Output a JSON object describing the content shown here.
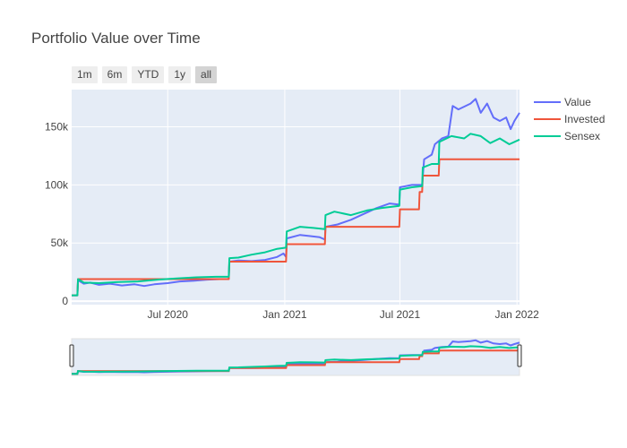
{
  "chart_data": {
    "type": "line",
    "title": "Portfolio Value over Time",
    "range_buttons": [
      {
        "label": "1m",
        "active": false
      },
      {
        "label": "6m",
        "active": false
      },
      {
        "label": "YTD",
        "active": false
      },
      {
        "label": "1y",
        "active": false
      },
      {
        "label": "all",
        "active": true
      }
    ],
    "x_range": [
      "2020-02-01",
      "2022-01-05"
    ],
    "y_range": [
      -3000,
      182000
    ],
    "x_ticks": [
      {
        "date": "2020-07-01",
        "label": "Jul 2020"
      },
      {
        "date": "2021-01-01",
        "label": "Jan 2021"
      },
      {
        "date": "2021-07-01",
        "label": "Jul 2021"
      },
      {
        "date": "2022-01-01",
        "label": "Jan 2022"
      }
    ],
    "y_ticks": [
      {
        "value": 0,
        "label": "0"
      },
      {
        "value": 50000,
        "label": "50k"
      },
      {
        "value": 100000,
        "label": "100k"
      },
      {
        "value": 150000,
        "label": "150k"
      }
    ],
    "legend_position": "top-right",
    "rangeslider": true,
    "colors": {
      "plot_bg": "#e5ecf6",
      "grid": "#ffffff"
    },
    "series": [
      {
        "name": "Value",
        "color": "#636efa",
        "points": [
          [
            "2020-02-01",
            5000
          ],
          [
            "2020-02-10",
            5000
          ],
          [
            "2020-02-11",
            18000
          ],
          [
            "2020-02-20",
            15000
          ],
          [
            "2020-03-01",
            16000
          ],
          [
            "2020-03-15",
            14000
          ],
          [
            "2020-04-01",
            15000
          ],
          [
            "2020-04-20",
            13500
          ],
          [
            "2020-05-10",
            14500
          ],
          [
            "2020-05-25",
            13000
          ],
          [
            "2020-06-10",
            14500
          ],
          [
            "2020-07-01",
            15500
          ],
          [
            "2020-07-20",
            17000
          ],
          [
            "2020-08-10",
            17500
          ],
          [
            "2020-09-01",
            18500
          ],
          [
            "2020-09-20",
            19000
          ],
          [
            "2020-10-05",
            19000
          ],
          [
            "2020-10-06",
            34000
          ],
          [
            "2020-10-20",
            35000
          ],
          [
            "2020-11-10",
            34500
          ],
          [
            "2020-12-01",
            35500
          ],
          [
            "2020-12-20",
            38000
          ],
          [
            "2020-12-30",
            41000
          ],
          [
            "2021-01-03",
            38000
          ],
          [
            "2021-01-04",
            54000
          ],
          [
            "2021-01-25",
            57000
          ],
          [
            "2021-02-10",
            56000
          ],
          [
            "2021-02-25",
            55000
          ],
          [
            "2021-03-05",
            53000
          ],
          [
            "2021-03-06",
            64000
          ],
          [
            "2021-03-25",
            66000
          ],
          [
            "2021-04-15",
            70000
          ],
          [
            "2021-05-05",
            75000
          ],
          [
            "2021-05-25",
            80000
          ],
          [
            "2021-06-15",
            84000
          ],
          [
            "2021-06-30",
            83000
          ],
          [
            "2021-07-01",
            98000
          ],
          [
            "2021-07-20",
            100000
          ],
          [
            "2021-08-05",
            100000
          ],
          [
            "2021-08-08",
            122000
          ],
          [
            "2021-08-20",
            126000
          ],
          [
            "2021-08-25",
            135000
          ],
          [
            "2021-09-05",
            140000
          ],
          [
            "2021-09-15",
            142000
          ],
          [
            "2021-09-22",
            168000
          ],
          [
            "2021-10-01",
            165000
          ],
          [
            "2021-10-20",
            170000
          ],
          [
            "2021-10-28",
            174000
          ],
          [
            "2021-11-05",
            162000
          ],
          [
            "2021-11-15",
            170000
          ],
          [
            "2021-11-25",
            158000
          ],
          [
            "2021-12-05",
            155000
          ],
          [
            "2021-12-15",
            158000
          ],
          [
            "2021-12-22",
            148000
          ],
          [
            "2021-12-28",
            155000
          ],
          [
            "2022-01-05",
            162000
          ]
        ]
      },
      {
        "name": "Invested",
        "color": "#ef553b",
        "points": [
          [
            "2020-02-01",
            5000
          ],
          [
            "2020-02-10",
            5000
          ],
          [
            "2020-02-11",
            19000
          ],
          [
            "2020-10-05",
            19000
          ],
          [
            "2020-10-06",
            34000
          ],
          [
            "2021-01-03",
            34000
          ],
          [
            "2021-01-04",
            49000
          ],
          [
            "2021-03-05",
            49000
          ],
          [
            "2021-03-06",
            64000
          ],
          [
            "2021-06-30",
            64000
          ],
          [
            "2021-07-01",
            79000
          ],
          [
            "2021-07-31",
            79000
          ],
          [
            "2021-08-01",
            94000
          ],
          [
            "2021-08-05",
            94000
          ],
          [
            "2021-08-06",
            108000
          ],
          [
            "2021-08-31",
            108000
          ],
          [
            "2021-09-01",
            122000
          ],
          [
            "2022-01-05",
            122000
          ]
        ]
      },
      {
        "name": "Sensex",
        "color": "#00cc96",
        "points": [
          [
            "2020-02-01",
            5000
          ],
          [
            "2020-02-10",
            5000
          ],
          [
            "2020-02-11",
            19000
          ],
          [
            "2020-02-20",
            16000
          ],
          [
            "2020-03-15",
            15500
          ],
          [
            "2020-04-15",
            16500
          ],
          [
            "2020-05-15",
            17000
          ],
          [
            "2020-06-15",
            18500
          ],
          [
            "2020-07-15",
            19500
          ],
          [
            "2020-08-15",
            20500
          ],
          [
            "2020-09-15",
            21000
          ],
          [
            "2020-10-05",
            21000
          ],
          [
            "2020-10-06",
            37000
          ],
          [
            "2020-10-20",
            37500
          ],
          [
            "2020-11-10",
            40000
          ],
          [
            "2020-12-01",
            42000
          ],
          [
            "2020-12-20",
            45000
          ],
          [
            "2021-01-03",
            46000
          ],
          [
            "2021-01-04",
            60000
          ],
          [
            "2021-01-25",
            64000
          ],
          [
            "2021-02-15",
            63000
          ],
          [
            "2021-03-05",
            62000
          ],
          [
            "2021-03-06",
            74000
          ],
          [
            "2021-03-20",
            77000
          ],
          [
            "2021-04-15",
            74000
          ],
          [
            "2021-05-10",
            78000
          ],
          [
            "2021-06-01",
            80000
          ],
          [
            "2021-06-30",
            82000
          ],
          [
            "2021-07-01",
            96000
          ],
          [
            "2021-07-20",
            98000
          ],
          [
            "2021-08-05",
            99000
          ],
          [
            "2021-08-06",
            115000
          ],
          [
            "2021-08-20",
            118000
          ],
          [
            "2021-08-31",
            118000
          ],
          [
            "2021-09-01",
            137000
          ],
          [
            "2021-09-20",
            142000
          ],
          [
            "2021-10-10",
            140000
          ],
          [
            "2021-10-20",
            144000
          ],
          [
            "2021-11-05",
            142000
          ],
          [
            "2021-11-20",
            136000
          ],
          [
            "2021-12-05",
            140000
          ],
          [
            "2021-12-20",
            135000
          ],
          [
            "2022-01-05",
            139000
          ]
        ]
      }
    ]
  }
}
